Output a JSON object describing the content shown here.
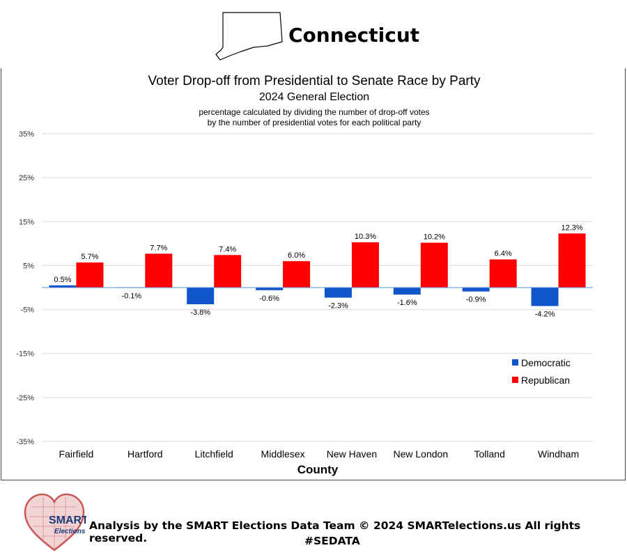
{
  "header": {
    "state_name": "Connecticut"
  },
  "chart_data": {
    "type": "bar",
    "title": "Voter Drop-off from Presidential to Senate Race by Party",
    "subtitle": "2024 General Election",
    "note_line1": "percentage calculated by dividing the number of drop-off votes",
    "note_line2": "by the number of presidential votes for each political party",
    "xlabel": "County",
    "ylabel": "",
    "ylim": [
      -35,
      35
    ],
    "y_ticks": [
      35,
      25,
      15,
      5,
      -5,
      -15,
      -25,
      -35
    ],
    "y_tick_labels": [
      "35%",
      "25%",
      "15%",
      "5%",
      "-5%",
      "-15%",
      "-25%",
      "-35%"
    ],
    "grid": true,
    "legend_position": "right-lower",
    "categories": [
      "Fairfield",
      "Hartford",
      "Litchfield",
      "Middlesex",
      "New Haven",
      "New London",
      "Tolland",
      "Windham"
    ],
    "series": [
      {
        "name": "Democratic",
        "color": "#1155cc",
        "values": [
          0.5,
          -0.1,
          -3.8,
          -0.6,
          -2.3,
          -1.6,
          -0.9,
          -4.2
        ],
        "labels": [
          "0.5%",
          "-0.1%",
          "-3.8%",
          "-0.6%",
          "-2.3%",
          "-1.6%",
          "-0.9%",
          "-4.2%"
        ]
      },
      {
        "name": "Republican",
        "color": "#ff0000",
        "values": [
          5.7,
          7.7,
          7.4,
          6.0,
          10.3,
          10.2,
          6.4,
          12.3
        ],
        "labels": [
          "5.7%",
          "7.7%",
          "7.4%",
          "6.0%",
          "10.3%",
          "10.2%",
          "6.4%",
          "12.3%"
        ]
      }
    ]
  },
  "footer": {
    "logo_text": "SMART",
    "logo_subtext": "Elections",
    "credit": "Analysis by the SMART Elections Data Team © 2024 SMARTelections.us All rights reserved.",
    "hashtag": "#SEDATA"
  }
}
